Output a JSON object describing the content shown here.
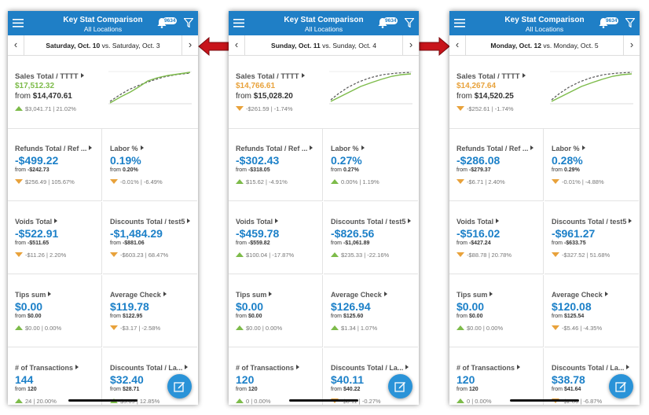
{
  "labels": {
    "from": "from",
    "vs": "vs."
  },
  "screens": [
    {
      "header": {
        "title": "Key Stat Comparison",
        "subtitle": "All Locations",
        "badge": "9634"
      },
      "date": {
        "current": "Saturday, Oct. 10",
        "prior": "Saturday, Oct. 3"
      },
      "sales": {
        "label": "Sales Total / TTTT",
        "value": "$17,512.32",
        "prior": "$14,470.61",
        "delta": "$3,041.71 | 21.02%",
        "direction": "up"
      },
      "tiles": [
        {
          "label": "Refunds Total / Ref ...",
          "value": "-$499.22",
          "prior": "-$242.73",
          "delta": "$256.49 | 105.67%",
          "direction": "down"
        },
        {
          "label": "Labor %",
          "value": "0.19%",
          "prior": "0.20%",
          "delta": "-0.01% | -6.49%",
          "direction": "down"
        },
        {
          "label": "Voids Total",
          "value": "-$522.91",
          "prior": "-$511.65",
          "delta": "-$11.26 | 2.20%",
          "direction": "down"
        },
        {
          "label": "Discounts Total / test5",
          "value": "-$1,484.29",
          "prior": "-$881.06",
          "delta": "-$603.23 | 68.47%",
          "direction": "down"
        },
        {
          "label": "Tips sum",
          "value": "$0.00",
          "prior": "$0.00",
          "delta": "$0.00 | 0.00%",
          "direction": "up"
        },
        {
          "label": "Average Check",
          "value": "$119.78",
          "prior": "$122.95",
          "delta": "-$3.17 | -2.58%",
          "direction": "down"
        },
        {
          "label": "# of Transactions",
          "value": "144",
          "prior": "120",
          "delta": "24 | 20.00%",
          "direction": "up"
        },
        {
          "label": "Discounts Total / La...",
          "value": "$32.40",
          "prior": "$28.71",
          "delta": "$3.69 | 12.85%",
          "direction": "up"
        }
      ]
    },
    {
      "header": {
        "title": "Key Stat Comparison",
        "subtitle": "All Locations",
        "badge": "9634"
      },
      "date": {
        "current": "Sunday, Oct. 11",
        "prior": "Sunday, Oct. 4"
      },
      "sales": {
        "label": "Sales Total / TTTT",
        "value": "$14,766.61",
        "prior": "$15,028.20",
        "delta": "-$261.59 | -1.74%",
        "direction": "down"
      },
      "tiles": [
        {
          "label": "Refunds Total / Ref ...",
          "value": "-$302.43",
          "prior": "-$318.05",
          "delta": "$15.62 | -4.91%",
          "direction": "up"
        },
        {
          "label": "Labor %",
          "value": "0.27%",
          "prior": "0.27%",
          "delta": "0.00% | 1.19%",
          "direction": "up"
        },
        {
          "label": "Voids Total",
          "value": "-$459.78",
          "prior": "-$559.82",
          "delta": "$100.04 | -17.87%",
          "direction": "up"
        },
        {
          "label": "Discounts Total / test5",
          "value": "-$826.56",
          "prior": "-$1,061.89",
          "delta": "$235.33 | -22.16%",
          "direction": "up"
        },
        {
          "label": "Tips sum",
          "value": "$0.00",
          "prior": "$0.00",
          "delta": "$0.00 | 0.00%",
          "direction": "up"
        },
        {
          "label": "Average Check",
          "value": "$126.94",
          "prior": "$125.60",
          "delta": "$1.34 | 1.07%",
          "direction": "up"
        },
        {
          "label": "# of Transactions",
          "value": "120",
          "prior": "120",
          "delta": "0 | 0.00%",
          "direction": "up"
        },
        {
          "label": "Discounts Total / La...",
          "value": "$40.11",
          "prior": "$40.22",
          "delta": "-$0.11 | -0.27%",
          "direction": "down"
        }
      ]
    },
    {
      "header": {
        "title": "Key Stat Comparison",
        "subtitle": "All Locations",
        "badge": "9634"
      },
      "date": {
        "current": "Monday, Oct. 12",
        "prior": "Monday, Oct. 5"
      },
      "sales": {
        "label": "Sales Total / TTTT",
        "value": "$14,267.64",
        "prior": "$14,520.25",
        "delta": "-$252.61 | -1.74%",
        "direction": "down"
      },
      "tiles": [
        {
          "label": "Refunds Total / Ref ...",
          "value": "-$286.08",
          "prior": "-$279.37",
          "delta": "-$6.71 | 2.40%",
          "direction": "down"
        },
        {
          "label": "Labor %",
          "value": "0.28%",
          "prior": "0.29%",
          "delta": "-0.01% | -4.88%",
          "direction": "down"
        },
        {
          "label": "Voids Total",
          "value": "-$516.02",
          "prior": "-$427.24",
          "delta": "-$88.78 | 20.78%",
          "direction": "down"
        },
        {
          "label": "Discounts Total / test5",
          "value": "-$961.27",
          "prior": "-$633.75",
          "delta": "-$327.52 | 51.68%",
          "direction": "down"
        },
        {
          "label": "Tips sum",
          "value": "$0.00",
          "prior": "$0.00",
          "delta": "$0.00 | 0.00%",
          "direction": "up"
        },
        {
          "label": "Average Check",
          "value": "$120.08",
          "prior": "$125.54",
          "delta": "-$5.46 | -4.35%",
          "direction": "down"
        },
        {
          "label": "# of Transactions",
          "value": "120",
          "prior": "120",
          "delta": "0 | 0.00%",
          "direction": "up"
        },
        {
          "label": "Discounts Total / La...",
          "value": "$38.78",
          "prior": "$41.64",
          "delta": "-$2.86 | -6.87%",
          "direction": "down"
        }
      ]
    }
  ]
}
